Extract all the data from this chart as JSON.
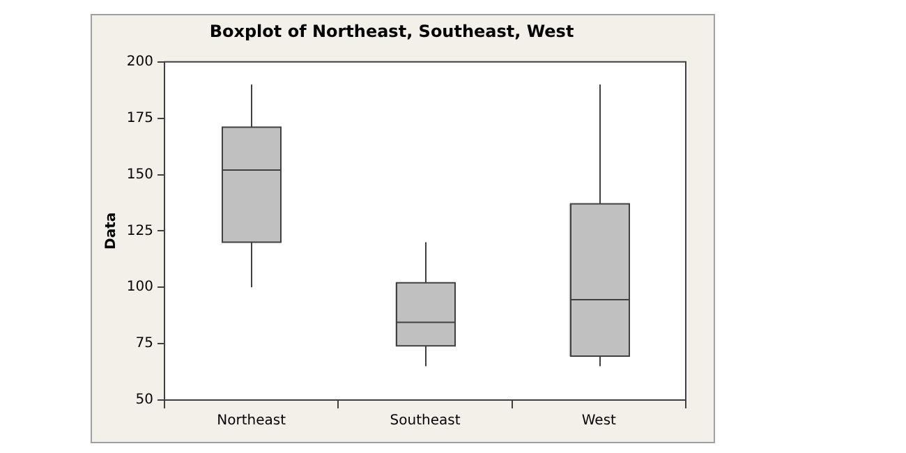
{
  "chart_data": {
    "type": "box",
    "title": "Boxplot of Northeast, Southeast, West",
    "ylabel": "Data",
    "categories": [
      "Northeast",
      "Southeast",
      "West"
    ],
    "boxes": [
      {
        "low": 100,
        "q1": 120,
        "median": 152,
        "q3": 171,
        "high": 190
      },
      {
        "low": 65,
        "q1": 74,
        "median": 84.5,
        "q3": 102,
        "high": 120
      },
      {
        "low": 65,
        "q1": 69.5,
        "median": 94.5,
        "q3": 137,
        "high": 190
      }
    ],
    "color": "#c0c0c0",
    "ylim": [
      50,
      200
    ],
    "yticks": [
      50,
      75,
      100,
      125,
      150,
      175,
      200
    ],
    "grid": false,
    "legend": false
  }
}
